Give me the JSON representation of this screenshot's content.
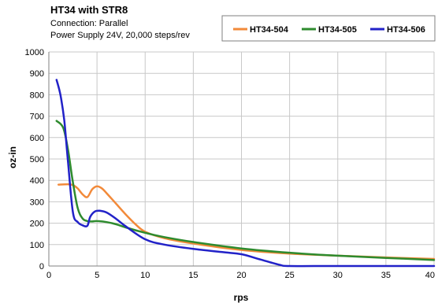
{
  "chart_data": {
    "type": "line",
    "title": "HT34 with STR8",
    "subtitle": [
      "Connection: Parallel",
      "Power Supply 24V, 20,000 steps/rev"
    ],
    "xlabel": "rps",
    "ylabel": "oz-in",
    "xlim": [
      0,
      40
    ],
    "ylim": [
      0,
      1000
    ],
    "xticks": [
      "0",
      "5",
      "10",
      "15",
      "20",
      "25",
      "30",
      "35",
      "40"
    ],
    "yticks": [
      "0",
      "100",
      "200",
      "300",
      "400",
      "500",
      "600",
      "700",
      "800",
      "900",
      "1000"
    ],
    "grid": true,
    "legend_position": "top-right",
    "series": [
      {
        "name": "HT34-504",
        "color": "#F28A3A",
        "x": [
          1,
          2,
          2.5,
          3,
          3.5,
          4,
          4.5,
          5,
          5.5,
          6,
          7,
          8,
          9,
          10,
          12,
          15,
          20,
          25,
          30,
          35,
          40
        ],
        "y": [
          380,
          382,
          378,
          362,
          335,
          322,
          358,
          372,
          363,
          340,
          290,
          240,
          195,
          160,
          130,
          105,
          75,
          58,
          48,
          40,
          33
        ]
      },
      {
        "name": "HT34-505",
        "color": "#2E8B2E",
        "x": [
          0.8,
          1.5,
          2,
          2.5,
          3,
          3.5,
          4,
          4.5,
          5,
          6,
          7,
          8,
          10,
          12,
          15,
          20,
          25,
          30,
          35,
          40
        ],
        "y": [
          678,
          645,
          540,
          390,
          270,
          222,
          210,
          208,
          210,
          205,
          195,
          180,
          155,
          135,
          112,
          82,
          62,
          48,
          38,
          28
        ]
      },
      {
        "name": "HT34-506",
        "color": "#2222C8",
        "x": [
          0.8,
          1.2,
          1.6,
          2,
          2.5,
          3,
          3.5,
          4,
          4.3,
          4.8,
          5.3,
          6,
          7,
          8,
          10,
          12,
          15,
          18,
          20,
          22,
          24,
          25,
          30,
          40
        ],
        "y": [
          870,
          800,
          680,
          480,
          250,
          205,
          190,
          188,
          230,
          255,
          258,
          250,
          220,
          185,
          125,
          100,
          80,
          65,
          55,
          30,
          5,
          0,
          0,
          0
        ]
      }
    ]
  }
}
